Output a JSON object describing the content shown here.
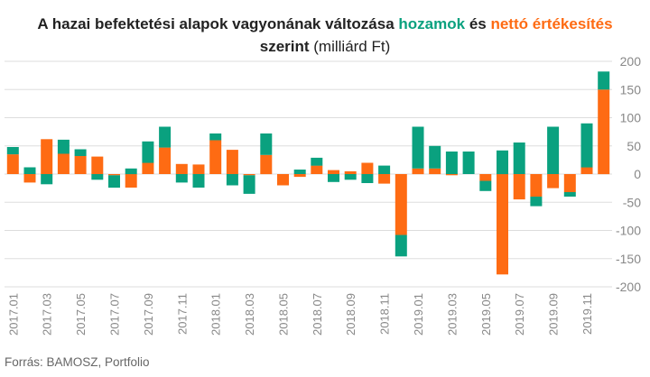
{
  "title": {
    "line1_prefix": "A hazai befektetési alapok vagyonának változása",
    "line1_green": "hozamok",
    "line1_mid": "és",
    "line1_orange": "nettó értékesítés",
    "line2_bold": "szerint",
    "line2_light": "(milliárd Ft)"
  },
  "source": "Forrás: BAMOSZ, Portfolio",
  "colors": {
    "hozamok": "#0aa17f",
    "netto": "#fe6b13",
    "grid": "#dddddd",
    "axis_text": "#888888"
  },
  "chart_data": {
    "type": "bar",
    "stacked": true,
    "title": "A hazai befektetési alapok vagyonának változása hozamok és nettó értékesítés szerint (milliárd Ft)",
    "ylim": [
      -200,
      200
    ],
    "yticks": [
      200,
      150,
      100,
      50,
      0,
      -50,
      -100,
      -150,
      -200
    ],
    "ytick_labels": [
      "200",
      "150",
      "100",
      "50",
      "0",
      "-50",
      "-100",
      "-150",
      "-200"
    ],
    "y_axis_position": "right",
    "grid": true,
    "x_tick_labels": [
      "2017.01",
      "2017.03",
      "2017.05",
      "2017.07",
      "2017.09",
      "2017.11",
      "2018.01",
      "2018.03",
      "2018.05",
      "2018.07",
      "2018.09",
      "2018.11",
      "2019.01",
      "2019.03",
      "2019.05",
      "2019.07",
      "2019.09",
      "2019.11"
    ],
    "categories": [
      "2017.01",
      "2017.02",
      "2017.03",
      "2017.04",
      "2017.05",
      "2017.06",
      "2017.07",
      "2017.08",
      "2017.09",
      "2017.10",
      "2017.11",
      "2017.12",
      "2018.01",
      "2018.02",
      "2018.03",
      "2018.04",
      "2018.05",
      "2018.06",
      "2018.07",
      "2018.08",
      "2018.09",
      "2018.10",
      "2018.11",
      "2018.12",
      "2019.01",
      "2019.02",
      "2019.03",
      "2019.04",
      "2019.05",
      "2019.06",
      "2019.07",
      "2019.08",
      "2019.09",
      "2019.10",
      "2019.11",
      "2019.12"
    ],
    "series": [
      {
        "name": "nettó értékesítés",
        "color": "#fe6b13",
        "values": [
          35,
          -15,
          62,
          36,
          32,
          31,
          -2,
          -24,
          20,
          47,
          18,
          17,
          60,
          43,
          -2,
          34,
          -20,
          -5,
          15,
          7,
          5,
          20,
          -17,
          -108,
          10,
          10,
          -2,
          0,
          -12,
          -178,
          -45,
          -40,
          -25,
          -32,
          12,
          150
        ]
      },
      {
        "name": "hozamok",
        "color": "#0aa17f",
        "values": [
          13,
          12,
          -18,
          25,
          12,
          -10,
          -22,
          10,
          38,
          37,
          -15,
          -24,
          12,
          -20,
          -33,
          38,
          0,
          8,
          14,
          -14,
          -10,
          -16,
          15,
          -38,
          74,
          40,
          40,
          40,
          -18,
          42,
          56,
          -17,
          84,
          -8,
          78,
          32
        ]
      }
    ]
  }
}
